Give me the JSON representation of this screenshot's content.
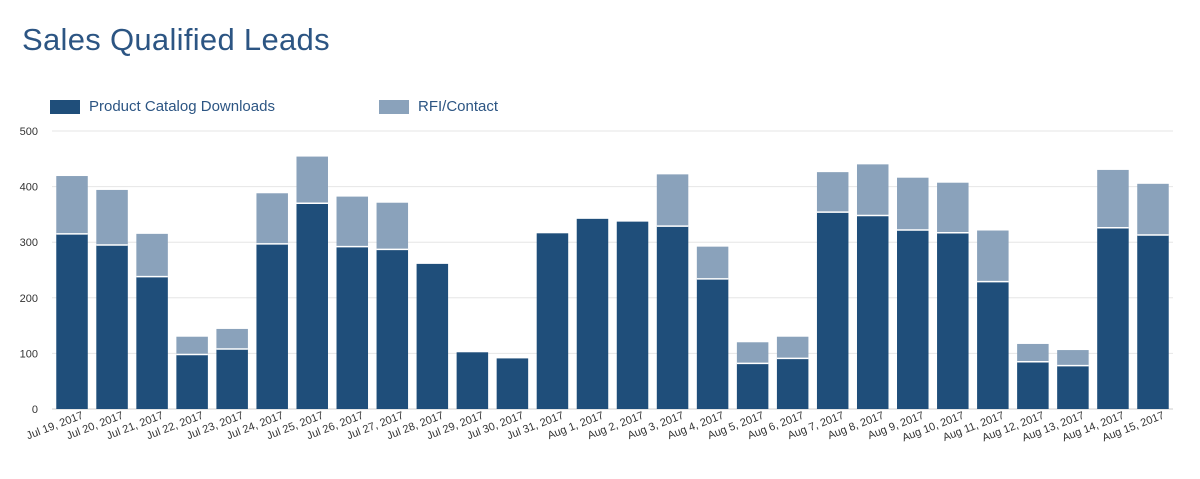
{
  "title": "Sales Qualified Leads",
  "colors": {
    "primary": "#1f4e7a",
    "secondary": "#8aa2bb",
    "grid": "#e6e6e6",
    "axis": "#cccccc"
  },
  "chart_data": {
    "type": "bar",
    "stacked": true,
    "title": "Sales Qualified Leads",
    "xlabel": "",
    "ylabel": "",
    "ylim": [
      0,
      500
    ],
    "yticks": [
      0,
      100,
      200,
      300,
      400,
      500
    ],
    "grid": true,
    "legend_position": "top-left",
    "categories": [
      "Jul 19, 2017",
      "Jul 20, 2017",
      "Jul 21, 2017",
      "Jul 22, 2017",
      "Jul 23, 2017",
      "Jul 24, 2017",
      "Jul 25, 2017",
      "Jul 26, 2017",
      "Jul 27, 2017",
      "Jul 28, 2017",
      "Jul 29, 2017",
      "Jul 30, 2017",
      "Jul 31, 2017",
      "Aug 1, 2017",
      "Aug 2, 2017",
      "Aug 3, 2017",
      "Aug 4, 2017",
      "Aug 5, 2017",
      "Aug 6, 2017",
      "Aug 7, 2017",
      "Aug 8, 2017",
      "Aug 9, 2017",
      "Aug 10, 2017",
      "Aug 11, 2017",
      "Aug 12, 2017",
      "Aug 13, 2017",
      "Aug 14, 2017",
      "Aug 15, 2017"
    ],
    "series": [
      {
        "name": "Product Catalog Downloads",
        "color": "#1f4e7a",
        "values": [
          315,
          295,
          238,
          98,
          108,
          297,
          370,
          292,
          287,
          261,
          102,
          91,
          316,
          342,
          337,
          329,
          234,
          82,
          91,
          354,
          348,
          322,
          317,
          229,
          85,
          78,
          326,
          313
        ]
      },
      {
        "name": "RFI/Contact",
        "color": "#8aa2bb",
        "values": [
          104,
          99,
          77,
          32,
          36,
          91,
          84,
          90,
          84,
          0,
          0,
          0,
          0,
          0,
          0,
          93,
          58,
          38,
          39,
          72,
          92,
          94,
          90,
          92,
          32,
          28,
          104,
          92
        ]
      }
    ]
  }
}
